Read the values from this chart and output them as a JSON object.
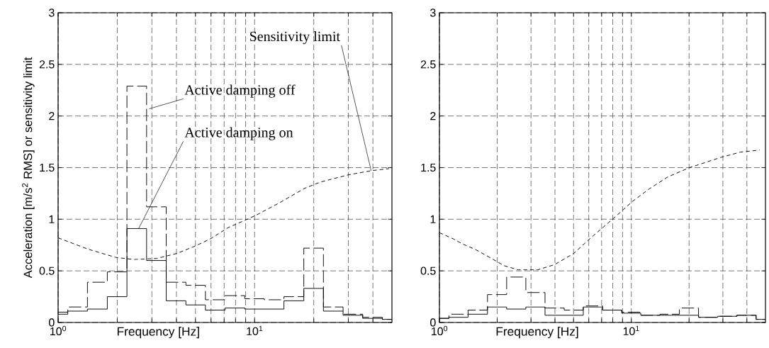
{
  "chart_data": [
    {
      "type": "step",
      "xlabel": "Frequency [Hz]",
      "ylabel": "Acceleration [m/s$^{2}$ RMS] or sensitivity limit",
      "log": "x",
      "grid": true,
      "xlim": [
        1,
        50
      ],
      "ylim": [
        0,
        3
      ],
      "xticks": [
        {
          "value": 1,
          "label": "10$^{0}$"
        },
        {
          "value": 2,
          "label": null
        },
        {
          "value": 3,
          "label": null
        },
        {
          "value": 4,
          "label": null
        },
        {
          "value": 5,
          "label": null
        },
        {
          "value": 6,
          "label": null
        },
        {
          "value": 7,
          "label": null
        },
        {
          "value": 8,
          "label": null
        },
        {
          "value": 9,
          "label": null
        },
        {
          "value": 10,
          "label": "10$^{1}$"
        },
        {
          "value": 20,
          "label": null
        },
        {
          "value": 30,
          "label": null
        },
        {
          "value": 40,
          "label": null
        }
      ],
      "yticks": [
        0,
        0.5,
        1,
        1.5,
        2,
        2.5,
        3
      ],
      "series": [
        {
          "line_style": "dashed",
          "color": "#000000",
          "x": [
            1,
            1.12,
            1.41,
            1.78,
            2.24,
            2.82,
            3.55,
            4.47,
            5.62,
            7.08,
            8.91,
            11.2,
            14.1,
            17.8,
            22.4,
            28.2,
            35.5,
            44.7,
            50
          ],
          "values": [
            0.1,
            0.15,
            0.39,
            0.49,
            2.29,
            1.12,
            0.39,
            0.36,
            0.22,
            0.26,
            0.23,
            0.22,
            0.25,
            0.72,
            0.15,
            0.08,
            0.05,
            0.03,
            0.03
          ]
        },
        {
          "line_style": "solid",
          "color": "#000000",
          "x": [
            1,
            1.12,
            1.41,
            1.78,
            2.24,
            2.82,
            3.55,
            4.47,
            5.62,
            7.08,
            8.91,
            11.2,
            14.1,
            17.8,
            22.4,
            28.2,
            35.5,
            44.7,
            50
          ],
          "values": [
            0.08,
            0.11,
            0.13,
            0.25,
            0.91,
            0.6,
            0.21,
            0.17,
            0.12,
            0.14,
            0.13,
            0.13,
            0.21,
            0.33,
            0.11,
            0.07,
            0.04,
            0.03,
            0.03
          ]
        },
        {
          "type": "line",
          "line_style": "dashed",
          "color": "#000000",
          "x": [
            1,
            1.42,
            1.97,
            2.43,
            3.18,
            4.04,
            4.98,
            5.96,
            7.35,
            8.93,
            10.2,
            13.4,
            18,
            21.6,
            30,
            39.2,
            48.3
          ],
          "values": [
            0.82,
            0.71,
            0.63,
            0.61,
            0.62,
            0.67,
            0.74,
            0.81,
            0.92,
            0.99,
            1.04,
            1.16,
            1.3,
            1.36,
            1.43,
            1.47,
            1.49
          ]
        }
      ],
      "annotations": [
        {
          "text": "Active damping off",
          "x": 2.91,
          "y": 2.07
        },
        {
          "text": "Active damping on",
          "x": 2.57,
          "y": 0.91
        },
        {
          "text": "Sensitivity limit",
          "x": 39.2,
          "y": 1.47
        }
      ]
    },
    {
      "type": "step",
      "xlabel": "Frequency [Hz]",
      "log": "x",
      "grid": true,
      "xlim": [
        1,
        50
      ],
      "ylim": [
        0,
        3
      ],
      "xticks": [
        {
          "value": 1,
          "label": "10$^{0}$"
        },
        {
          "value": 2,
          "label": null
        },
        {
          "value": 3,
          "label": null
        },
        {
          "value": 4,
          "label": null
        },
        {
          "value": 5,
          "label": null
        },
        {
          "value": 6,
          "label": null
        },
        {
          "value": 7,
          "label": null
        },
        {
          "value": 8,
          "label": null
        },
        {
          "value": 9,
          "label": null
        },
        {
          "value": 10,
          "label": "10$^{1}$"
        },
        {
          "value": 20,
          "label": null
        },
        {
          "value": 30,
          "label": null
        },
        {
          "value": 40,
          "label": null
        }
      ],
      "yticks": [
        0,
        0.5,
        1,
        1.5,
        2,
        2.5,
        3
      ],
      "series": [
        {
          "line_style": "dashed",
          "color": "#000000",
          "x": [
            1,
            1.12,
            1.41,
            1.78,
            2.24,
            2.82,
            3.55,
            4.47,
            5.62,
            7.08,
            8.91,
            11.2,
            14.1,
            17.8,
            22.4,
            28.2,
            35.5,
            44.7,
            50
          ],
          "values": [
            0.04,
            0.08,
            0.12,
            0.27,
            0.44,
            0.29,
            0.14,
            0.12,
            0.16,
            0.12,
            0.1,
            0.07,
            0.08,
            0.14,
            0.05,
            0.06,
            0.07,
            0.03,
            0.03
          ]
        },
        {
          "line_style": "solid",
          "color": "#000000",
          "x": [
            1,
            1.12,
            1.41,
            1.78,
            2.24,
            2.82,
            3.55,
            4.47,
            5.62,
            7.08,
            8.91,
            11.2,
            14.1,
            17.8,
            22.4,
            28.2,
            35.5,
            44.7,
            50
          ],
          "values": [
            0.04,
            0.05,
            0.08,
            0.15,
            0.13,
            0.15,
            0.07,
            0.07,
            0.15,
            0.12,
            0.09,
            0.07,
            0.07,
            0.07,
            0.05,
            0.06,
            0.07,
            0.03,
            0.03
          ]
        },
        {
          "type": "line",
          "line_style": "dashed",
          "color": "#000000",
          "x": [
            1,
            1.18,
            1.32,
            1.53,
            1.87,
            2.17,
            2.58,
            3.25,
            3.98,
            5.02,
            6.15,
            7.98,
            10.1,
            12.3,
            15.5,
            20.1,
            29.4,
            37,
            46.6
          ],
          "values": [
            0.87,
            0.81,
            0.76,
            0.71,
            0.62,
            0.55,
            0.51,
            0.51,
            0.56,
            0.67,
            0.82,
            1.0,
            1.17,
            1.29,
            1.41,
            1.5,
            1.6,
            1.65,
            1.67
          ]
        }
      ]
    }
  ]
}
